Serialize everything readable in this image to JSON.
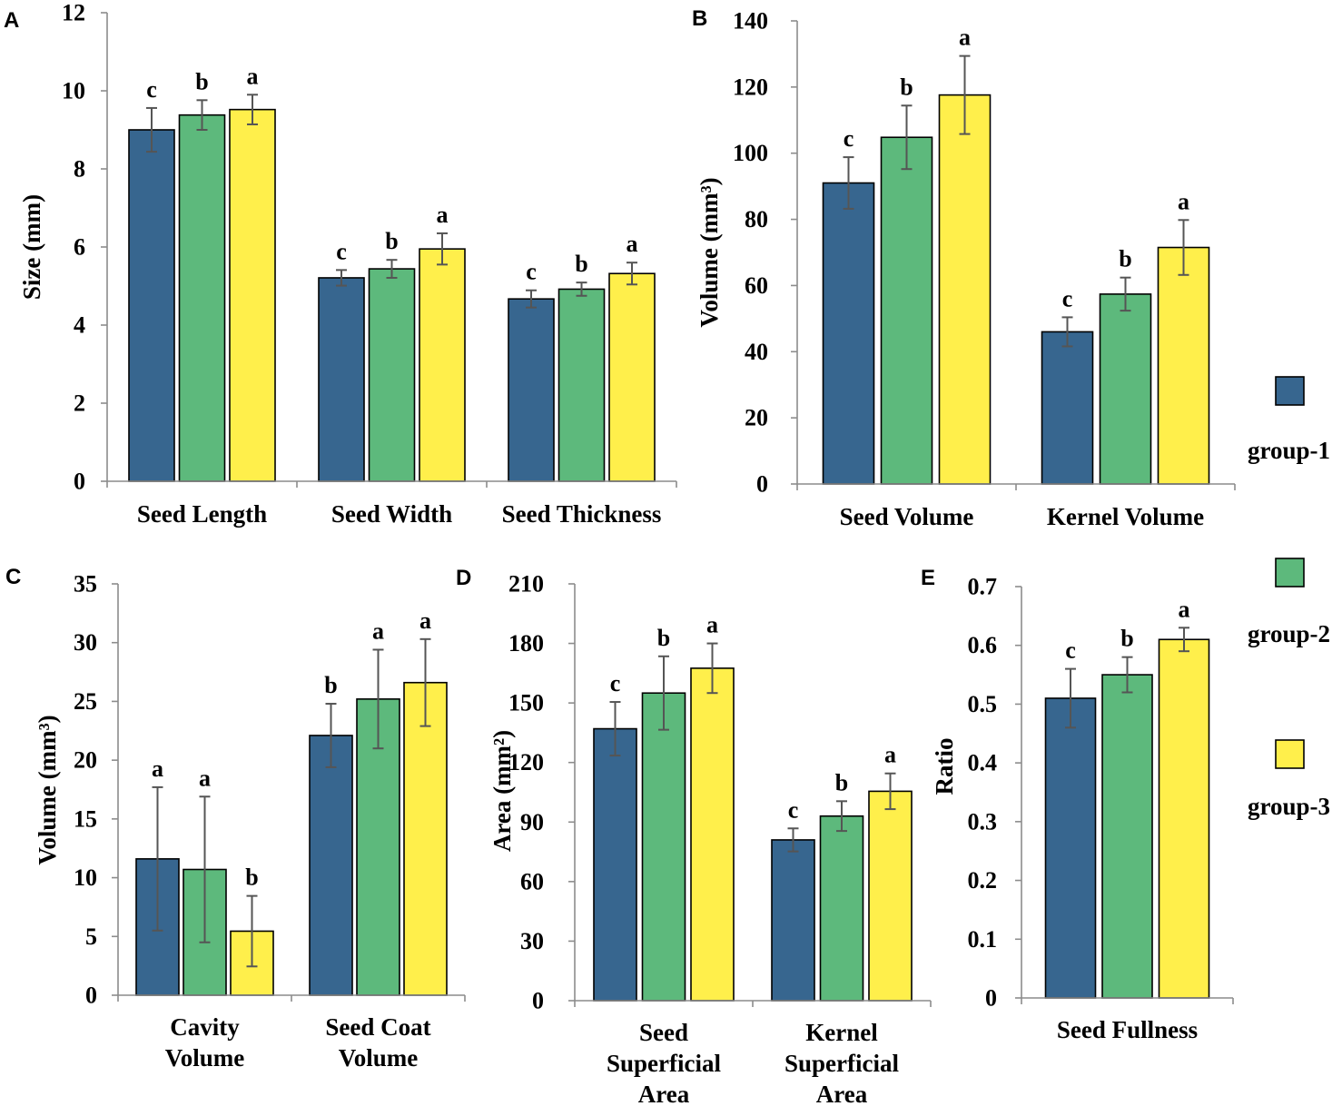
{
  "chart_data": [
    {
      "panel": "A",
      "type": "bar",
      "ylabel": "Size (mm)",
      "ylim": [
        0,
        12
      ],
      "yticks": [
        0,
        2,
        4,
        6,
        8,
        10,
        12
      ],
      "categories": [
        [
          "Seed Length"
        ],
        [
          "Seed Width"
        ],
        [
          "Seed Thickness"
        ]
      ],
      "series": [
        {
          "legend_index": 0,
          "values": [
            9.0,
            5.21,
            4.67
          ],
          "errors": [
            0.56,
            0.2,
            0.22
          ],
          "letters": [
            "c",
            "c",
            "c"
          ]
        },
        {
          "legend_index": 1,
          "values": [
            9.38,
            5.44,
            4.92
          ],
          "errors": [
            0.38,
            0.23,
            0.17
          ],
          "letters": [
            "b",
            "b",
            "b"
          ]
        },
        {
          "legend_index": 2,
          "values": [
            9.52,
            5.95,
            5.32
          ],
          "errors": [
            0.38,
            0.4,
            0.28
          ],
          "letters": [
            "a",
            "a",
            "a"
          ]
        }
      ]
    },
    {
      "panel": "B",
      "type": "bar",
      "ylabel": "Volume (mm³)",
      "ylim": [
        0,
        140
      ],
      "yticks": [
        0,
        20,
        40,
        60,
        80,
        100,
        120,
        140
      ],
      "categories": [
        [
          "Seed Volume"
        ],
        [
          "Kernel Volume"
        ]
      ],
      "series": [
        {
          "legend_index": 0,
          "values": [
            91.0,
            46.0
          ],
          "errors": [
            7.8,
            4.4
          ],
          "letters": [
            "c",
            "c"
          ]
        },
        {
          "legend_index": 1,
          "values": [
            104.8,
            57.4
          ],
          "errors": [
            9.6,
            5.0
          ],
          "letters": [
            "b",
            "b"
          ]
        },
        {
          "legend_index": 2,
          "values": [
            117.6,
            71.5
          ],
          "errors": [
            11.8,
            8.3
          ],
          "letters": [
            "a",
            "a"
          ]
        }
      ]
    },
    {
      "panel": "C",
      "type": "bar",
      "ylabel": "Volume (mm³)",
      "ylim": [
        0,
        35
      ],
      "yticks": [
        0,
        5,
        10,
        15,
        20,
        25,
        30,
        35
      ],
      "categories": [
        [
          "Cavity",
          "Volume"
        ],
        [
          "Seed Coat",
          "Volume"
        ]
      ],
      "series": [
        {
          "legend_index": 0,
          "values": [
            11.6,
            22.1
          ],
          "errors": [
            6.1,
            2.7
          ],
          "letters": [
            "a",
            "b"
          ]
        },
        {
          "legend_index": 1,
          "values": [
            10.7,
            25.2
          ],
          "errors": [
            6.2,
            4.2
          ],
          "letters": [
            "a",
            "a"
          ]
        },
        {
          "legend_index": 2,
          "values": [
            5.45,
            26.6
          ],
          "errors": [
            3.0,
            3.7
          ],
          "letters": [
            "b",
            "a"
          ]
        }
      ]
    },
    {
      "panel": "D",
      "type": "bar",
      "ylabel": "Area (mm²)",
      "ylim": [
        0,
        210
      ],
      "yticks": [
        0,
        30,
        60,
        90,
        120,
        150,
        180,
        210
      ],
      "categories": [
        [
          "Seed",
          "Superficial",
          "Area"
        ],
        [
          "Kernel",
          "Superficial",
          "Area"
        ]
      ],
      "series": [
        {
          "legend_index": 0,
          "values": [
            137.0,
            81.0
          ],
          "errors": [
            13.5,
            5.8
          ],
          "letters": [
            "c",
            "c"
          ]
        },
        {
          "legend_index": 1,
          "values": [
            155.0,
            93.0
          ],
          "errors": [
            18.5,
            7.5
          ],
          "letters": [
            "b",
            "b"
          ]
        },
        {
          "legend_index": 2,
          "values": [
            167.5,
            105.5
          ],
          "errors": [
            12.5,
            9.0
          ],
          "letters": [
            "a",
            "a"
          ]
        }
      ]
    },
    {
      "panel": "E",
      "type": "bar",
      "ylabel": "Ratio",
      "ylim": [
        0,
        0.7
      ],
      "yticks": [
        0,
        0.1,
        0.2,
        0.3,
        0.4,
        0.5,
        0.6,
        0.7
      ],
      "categories": [
        [
          "Seed Fullness"
        ]
      ],
      "series": [
        {
          "legend_index": 0,
          "values": [
            0.51
          ],
          "errors": [
            0.05
          ],
          "letters": [
            "c"
          ]
        },
        {
          "legend_index": 1,
          "values": [
            0.55
          ],
          "errors": [
            0.03
          ],
          "letters": [
            "b"
          ]
        },
        {
          "legend_index": 2,
          "values": [
            0.61
          ],
          "errors": [
            0.02
          ],
          "letters": [
            "a"
          ]
        }
      ]
    }
  ],
  "legend": {
    "items": [
      {
        "name": "group-1",
        "color": "#37668F"
      },
      {
        "name": "group-2",
        "color": "#5DB97C"
      },
      {
        "name": "group-3",
        "color": "#FFEF4B"
      }
    ]
  },
  "colors": {
    "axis": "#8c8c8c",
    "error_bar": "#555555",
    "bar_outline": "#000000"
  }
}
